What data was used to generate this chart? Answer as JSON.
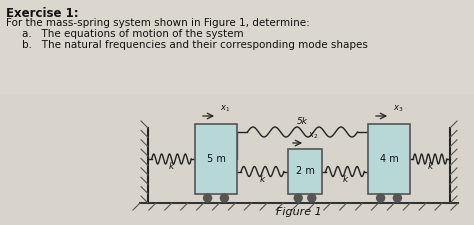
{
  "title": "Exercise 1:",
  "line1": "For the mass-spring system shown in Figure 1, determine:",
  "line2a": "a.   The equations of motion of the system",
  "line2b": "b.   The natural frequencies and their corresponding mode shapes",
  "figure_label": "Figure 1",
  "bg_color": "#d8d4cc",
  "text_bg": "#e8e4dc",
  "mass_color": "#b8d8d8",
  "mass_edge": "#555555",
  "spring_color": "#222222",
  "wall_hatch_color": "#555555",
  "floor_color": "#666666",
  "text_color": "#111111",
  "mass1_label": "5 m",
  "mass2_label": "2 m",
  "mass3_label": "4 m"
}
